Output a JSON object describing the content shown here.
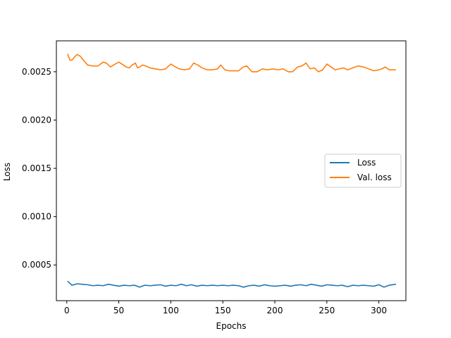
{
  "chart_data": {
    "type": "line",
    "xlabel": "Epochs",
    "ylabel": "Loss",
    "xlim": [
      -10,
      326
    ],
    "ylim": [
      0.00013,
      0.00282
    ],
    "xticks": [
      0,
      50,
      100,
      150,
      200,
      250,
      300
    ],
    "yticks": [
      0.0005,
      0.001,
      0.0015,
      0.002,
      0.0025
    ],
    "ytick_labels": [
      "0.0005",
      "0.0010",
      "0.0015",
      "0.0020",
      "0.0025"
    ],
    "grid": false,
    "legend_position": "center-right",
    "series": [
      {
        "name": "Loss",
        "color": "#1f77b4",
        "x": [
          1,
          5,
          10,
          15,
          20,
          25,
          30,
          35,
          40,
          45,
          50,
          55,
          60,
          65,
          70,
          75,
          80,
          85,
          90,
          95,
          100,
          105,
          110,
          115,
          120,
          125,
          130,
          135,
          140,
          145,
          150,
          155,
          160,
          165,
          170,
          175,
          180,
          185,
          190,
          195,
          200,
          205,
          210,
          215,
          220,
          225,
          230,
          235,
          240,
          245,
          250,
          255,
          260,
          265,
          270,
          275,
          280,
          285,
          290,
          295,
          300,
          305,
          310,
          316
        ],
        "values": [
          0.00033,
          0.00029,
          0.000305,
          0.0003,
          0.000295,
          0.000285,
          0.00029,
          0.000285,
          0.0003,
          0.00029,
          0.00028,
          0.00029,
          0.000285,
          0.00029,
          0.00027,
          0.00029,
          0.000285,
          0.00029,
          0.000295,
          0.00028,
          0.00029,
          0.000285,
          0.0003,
          0.000285,
          0.000295,
          0.00028,
          0.00029,
          0.000285,
          0.00029,
          0.000285,
          0.00029,
          0.000285,
          0.00029,
          0.000285,
          0.00027,
          0.000285,
          0.00029,
          0.00028,
          0.000295,
          0.000285,
          0.00028,
          0.000285,
          0.00029,
          0.00028,
          0.00029,
          0.000295,
          0.000285,
          0.0003,
          0.00029,
          0.00028,
          0.000295,
          0.00029,
          0.000285,
          0.00029,
          0.000275,
          0.00029,
          0.000285,
          0.00029,
          0.000285,
          0.00028,
          0.000295,
          0.00027,
          0.00029,
          0.0003
        ]
      },
      {
        "name": "Val. loss",
        "color": "#ff7f0e",
        "x": [
          1,
          3,
          5,
          8,
          10,
          13,
          16,
          20,
          25,
          30,
          35,
          38,
          42,
          45,
          50,
          53,
          57,
          60,
          63,
          66,
          68,
          70,
          73,
          76,
          80,
          85,
          90,
          95,
          100,
          103,
          108,
          113,
          118,
          122,
          126,
          130,
          135,
          140,
          145,
          148,
          152,
          156,
          160,
          165,
          170,
          173,
          178,
          183,
          188,
          193,
          198,
          203,
          208,
          213,
          217,
          222,
          226,
          230,
          234,
          238,
          242,
          246,
          250,
          254,
          258,
          262,
          266,
          270,
          275,
          280,
          285,
          290,
          295,
          300,
          303,
          306,
          310,
          316
        ],
        "values": [
          0.00268,
          0.00262,
          0.00262,
          0.00266,
          0.00268,
          0.00266,
          0.00262,
          0.00257,
          0.00256,
          0.00256,
          0.0026,
          0.00259,
          0.00255,
          0.00257,
          0.0026,
          0.00258,
          0.00255,
          0.00254,
          0.00257,
          0.00259,
          0.00254,
          0.00255,
          0.00257,
          0.00256,
          0.00254,
          0.00253,
          0.00252,
          0.00253,
          0.00258,
          0.00256,
          0.00253,
          0.00252,
          0.00253,
          0.00259,
          0.00257,
          0.00254,
          0.00252,
          0.00252,
          0.00253,
          0.00257,
          0.00252,
          0.00251,
          0.00251,
          0.00251,
          0.00255,
          0.00256,
          0.0025,
          0.0025,
          0.00253,
          0.00252,
          0.00253,
          0.00252,
          0.00253,
          0.0025,
          0.0025,
          0.00255,
          0.00256,
          0.00259,
          0.00253,
          0.00254,
          0.0025,
          0.00252,
          0.00258,
          0.00255,
          0.00252,
          0.00253,
          0.00254,
          0.00252,
          0.00254,
          0.00256,
          0.00255,
          0.00253,
          0.00251,
          0.00252,
          0.00253,
          0.00255,
          0.00252,
          0.00252
        ]
      }
    ]
  }
}
